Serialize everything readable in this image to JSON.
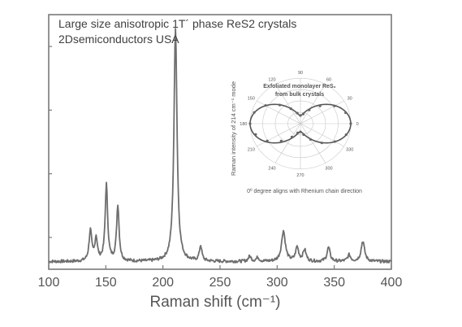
{
  "title_lines": [
    "Large size anisotropic 1T´ phase ReS2 crystals",
    "2Dsemiconductors USA"
  ],
  "chart_data": {
    "type": "line",
    "title": "Large size anisotropic 1T´ phase ReS2 crystals",
    "subtitle": "2Dsemiconductors USA",
    "xlabel": "Raman shift (cm⁻¹)",
    "ylabel": "",
    "xlim": [
      100,
      400
    ],
    "ylim": [
      0,
      1
    ],
    "xticks": [
      "100",
      "150",
      "200",
      "250",
      "300",
      "350",
      "400"
    ],
    "baseline": 0.03,
    "noise": 0.006,
    "line_color": "#6e6e6e",
    "peaks": [
      {
        "x": 136.5,
        "h": 0.12,
        "w": 1.4
      },
      {
        "x": 141.5,
        "h": 0.09,
        "w": 1.3
      },
      {
        "x": 150.5,
        "h": 0.3,
        "w": 1.3
      },
      {
        "x": 160.5,
        "h": 0.22,
        "w": 1.3
      },
      {
        "x": 211.0,
        "h": 0.92,
        "w": 1.6
      },
      {
        "x": 233.0,
        "h": 0.06,
        "w": 1.3
      },
      {
        "x": 276.0,
        "h": 0.02,
        "w": 1.5
      },
      {
        "x": 283.0,
        "h": 0.015,
        "w": 1.5
      },
      {
        "x": 305.5,
        "h": 0.12,
        "w": 2.0
      },
      {
        "x": 317.5,
        "h": 0.055,
        "w": 1.6
      },
      {
        "x": 324.0,
        "h": 0.045,
        "w": 1.6
      },
      {
        "x": 345.0,
        "h": 0.055,
        "w": 1.6
      },
      {
        "x": 363.0,
        "h": 0.025,
        "w": 1.6
      },
      {
        "x": 375.0,
        "h": 0.08,
        "w": 1.8
      }
    ],
    "inset": {
      "type": "polar-scatter",
      "label_lines": [
        "Exfoliated monolayer ReS₂",
        "from bulk crystals"
      ],
      "ylabel": "Raman intensity of 214 cm⁻¹ mode",
      "caption": "0º degree aligns with Rhenium chain direction",
      "angle_labels": [
        {
          "deg": 90,
          "text": "90"
        },
        {
          "deg": 60,
          "text": "60"
        },
        {
          "deg": 30,
          "text": "30"
        },
        {
          "deg": 0,
          "text": "0"
        },
        {
          "deg": 330,
          "text": "330"
        },
        {
          "deg": 300,
          "text": "300"
        },
        {
          "deg": 270,
          "text": "270"
        },
        {
          "deg": 240,
          "text": "240"
        },
        {
          "deg": 210,
          "text": "210"
        },
        {
          "deg": 180,
          "text": "180"
        },
        {
          "deg": 150,
          "text": "150"
        },
        {
          "deg": 120,
          "text": "120"
        }
      ],
      "points": [
        {
          "deg": 0,
          "r": 1.0
        },
        {
          "deg": 15,
          "r": 0.93
        },
        {
          "deg": 30,
          "r": 0.78
        },
        {
          "deg": 45,
          "r": 0.55
        },
        {
          "deg": 60,
          "r": 0.35
        },
        {
          "deg": 75,
          "r": 0.22
        },
        {
          "deg": 90,
          "r": 0.18
        },
        {
          "deg": 105,
          "r": 0.24
        },
        {
          "deg": 120,
          "r": 0.38
        },
        {
          "deg": 135,
          "r": 0.58
        },
        {
          "deg": 150,
          "r": 0.8
        },
        {
          "deg": 165,
          "r": 0.95
        },
        {
          "deg": 180,
          "r": 1.0
        },
        {
          "deg": 195,
          "r": 0.92
        },
        {
          "deg": 210,
          "r": 0.76
        },
        {
          "deg": 225,
          "r": 0.54
        },
        {
          "deg": 240,
          "r": 0.34
        },
        {
          "deg": 255,
          "r": 0.21
        },
        {
          "deg": 270,
          "r": 0.18
        },
        {
          "deg": 285,
          "r": 0.25
        },
        {
          "deg": 300,
          "r": 0.4
        },
        {
          "deg": 315,
          "r": 0.6
        },
        {
          "deg": 330,
          "r": 0.79
        },
        {
          "deg": 345,
          "r": 0.94
        }
      ]
    }
  }
}
